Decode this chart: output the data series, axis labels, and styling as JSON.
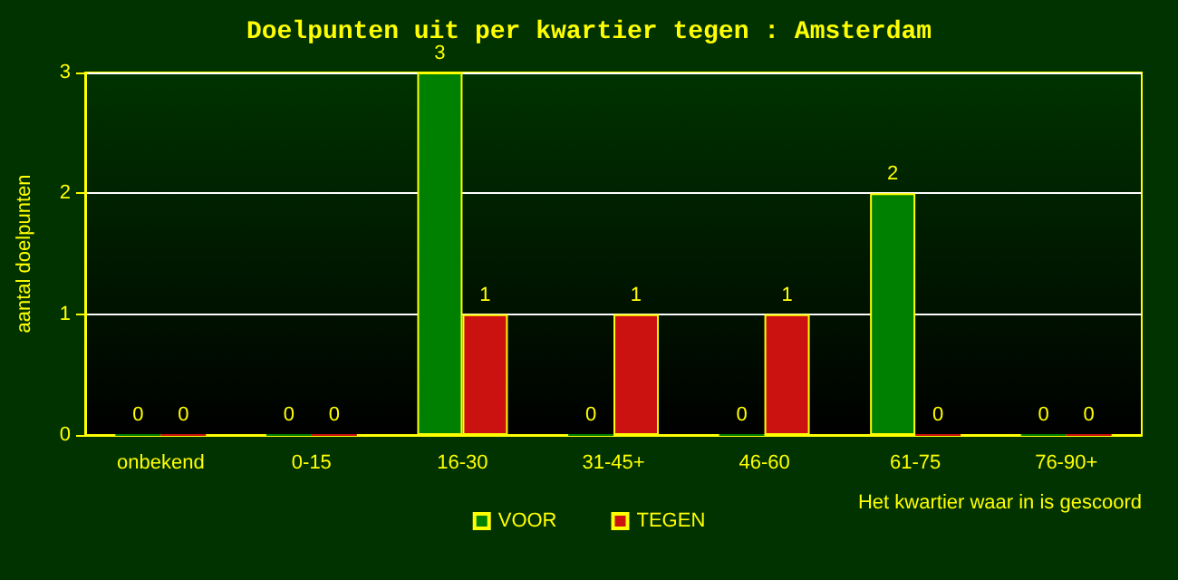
{
  "chart_data": {
    "type": "bar",
    "title": "Doelpunten uit per kwartier tegen : Amsterdam",
    "xlabel": "Het kwartier waar in is gescoord",
    "ylabel": "aantal doelpunten",
    "categories": [
      "onbekend",
      "0-15",
      "16-30",
      "31-45+",
      "46-60",
      "61-75",
      "76-90+"
    ],
    "series": [
      {
        "name": "VOOR",
        "color": "#008000",
        "values": [
          0,
          0,
          3,
          0,
          0,
          2,
          0
        ]
      },
      {
        "name": "TEGEN",
        "color": "#cc1111",
        "values": [
          0,
          0,
          1,
          1,
          1,
          0,
          0
        ]
      }
    ],
    "ylim": [
      0,
      3
    ],
    "yticks": [
      0,
      1,
      2,
      3
    ],
    "grid": "y",
    "legend": "bottom",
    "data_labels": true
  }
}
